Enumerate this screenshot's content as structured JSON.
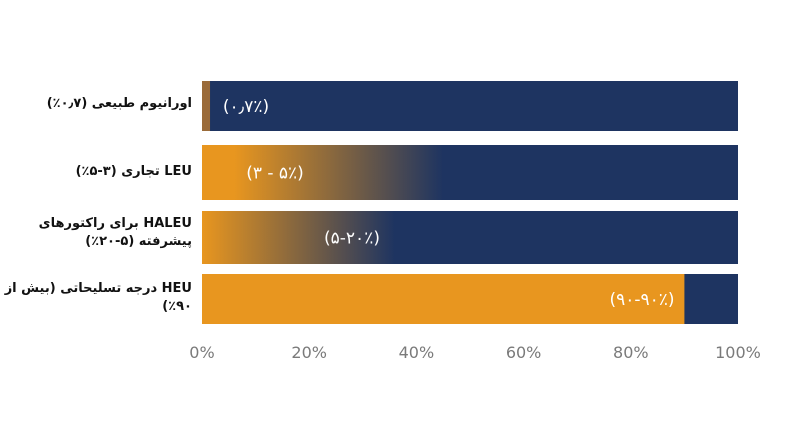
{
  "colors": {
    "navy": "#1e3461",
    "orange": "#e8961f",
    "brown": "#9a6b3a"
  },
  "chart_data": {
    "type": "bar",
    "orientation": "horizontal",
    "stacked": true,
    "xlim": [
      0,
      100
    ],
    "x_ticks": [
      "0%",
      "20%",
      "40%",
      "60%",
      "80%",
      "100%"
    ],
    "categories": [
      "اورانیوم طبیعی (۰٫۷٪)",
      "LEU تجاری (۳-۵٪)",
      "HALEU برای راکتورهای پیشرفته (۵-۲۰٪)",
      "HEU درجه تسلیحاتی (بیش از ۹۰٪)"
    ],
    "bars": [
      {
        "enriched": 1.5,
        "fade_to": 1.5,
        "label": "(۰٫۷٪)"
      },
      {
        "enriched": 6,
        "fade_to": 45,
        "label": "(۳ - ۵٪)"
      },
      {
        "enriched": 0,
        "fade_to": 36,
        "label": "(۵-۲۰٪)"
      },
      {
        "enriched": 90,
        "fade_to": 90,
        "label": "(۹۰-۹۰٪)"
      }
    ]
  }
}
